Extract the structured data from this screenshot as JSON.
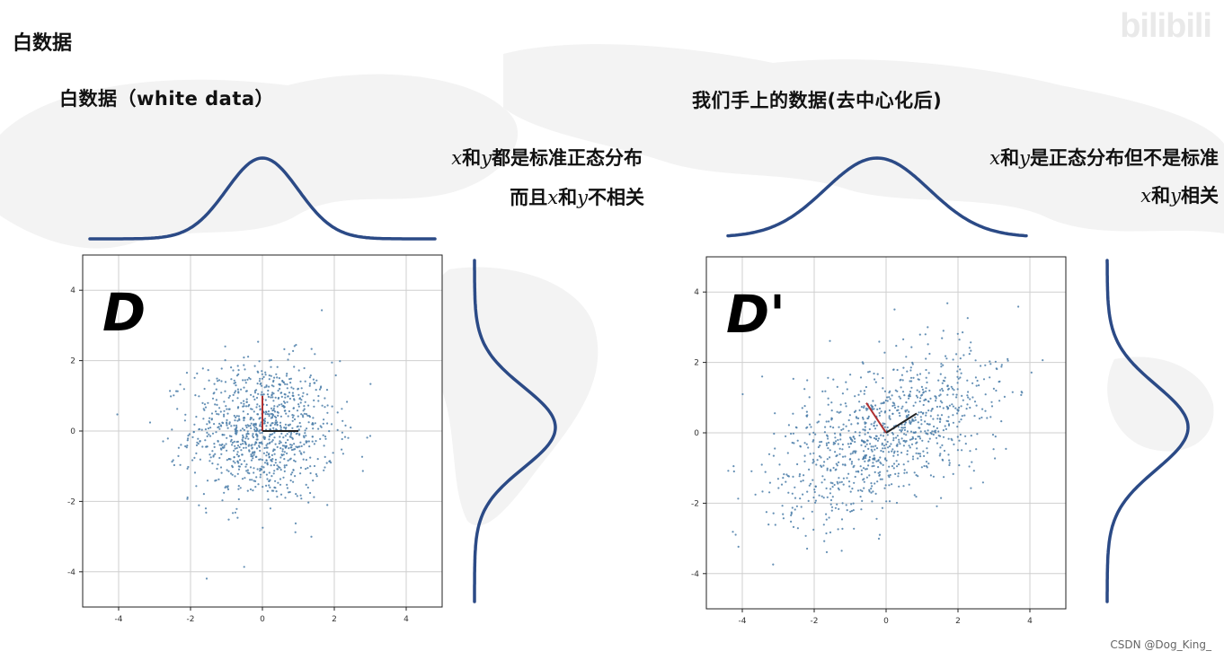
{
  "page": {
    "title": "白数据",
    "watermark": "CSDN @Dog_King_",
    "logo": "bilibili"
  },
  "left": {
    "subtitle": "白数据（white data）",
    "note_line1_x": "x",
    "note_line1_mid": "和",
    "note_line1_y": "y",
    "note_line1_rest": "都是标准正态分布",
    "note_line2_pre": "而且",
    "note_line2_x": "x",
    "note_line2_mid": "和",
    "note_line2_y": "y",
    "note_line2_rest": "不相关"
  },
  "right": {
    "subtitle": "我们手上的数据(去中心化后)",
    "note_line1_x": "x",
    "note_line1_mid": "和",
    "note_line1_y": "y",
    "note_line1_rest": "是正态分布但不是标准",
    "note_line2_x": "x",
    "note_line2_mid": "和",
    "note_line2_y": "y",
    "note_line2_rest": "相关"
  },
  "chart_data": [
    {
      "type": "scatter",
      "label": "D",
      "description": "white data: x and y independent standard normal",
      "n_points": 1000,
      "x_mean": 0,
      "y_mean": 0,
      "x_std": 1,
      "y_std": 1,
      "correlation": 0,
      "xlim": [
        -5,
        5
      ],
      "ylim": [
        -5,
        5
      ],
      "xticks": [
        -4,
        -2,
        0,
        2,
        4
      ],
      "yticks": [
        -4,
        -2,
        0,
        2,
        4
      ],
      "grid": true,
      "point_color": "#4a7ca8",
      "basis_vectors": [
        {
          "dx": 0,
          "dy": 1,
          "color": "#b03030"
        },
        {
          "dx": 1,
          "dy": 0,
          "color": "#222222"
        }
      ],
      "marginal_x": {
        "type": "normal",
        "mean": 0,
        "std": 1
      },
      "marginal_y": {
        "type": "normal",
        "mean": 0,
        "std": 1
      }
    },
    {
      "type": "scatter",
      "label": "D'",
      "description": "centered correlated data",
      "n_points": 1000,
      "x_mean": 0,
      "y_mean": 0,
      "x_std": 1.6,
      "y_std": 1.2,
      "correlation": 0.55,
      "xlim": [
        -5,
        5
      ],
      "ylim": [
        -5,
        5
      ],
      "xticks": [
        -4,
        -2,
        0,
        2,
        4
      ],
      "yticks": [
        -4,
        -2,
        0,
        2,
        4
      ],
      "grid": true,
      "point_color": "#4a7ca8",
      "basis_vectors": [
        {
          "dx": -0.55,
          "dy": 0.85,
          "color": "#b03030"
        },
        {
          "dx": 0.85,
          "dy": 0.55,
          "color": "#222222"
        }
      ],
      "marginal_x": {
        "type": "normal",
        "mean": 0,
        "std": 1.6
      },
      "marginal_y": {
        "type": "normal",
        "mean": 0,
        "std": 1.2
      }
    }
  ],
  "colors": {
    "curve": "#2b4a86",
    "grid": "#cfcfcf",
    "axes": "#222222",
    "tick_text": "#333333"
  }
}
